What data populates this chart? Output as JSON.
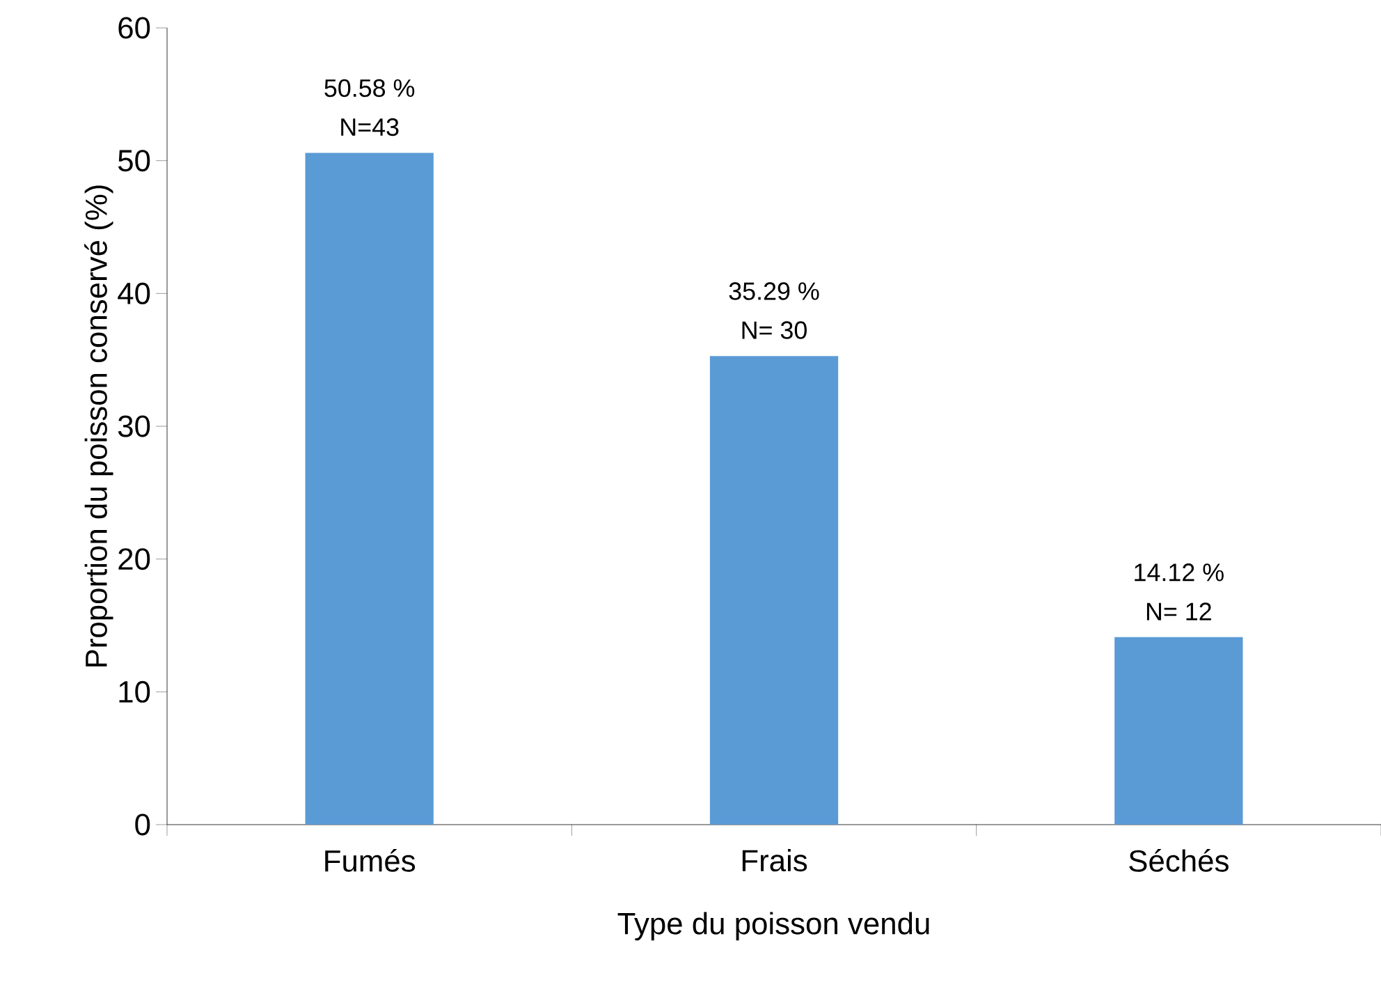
{
  "chart_data": {
    "type": "bar",
    "xlabel": "Type du poisson vendu",
    "ylabel": "Proportion du poisson conservé (%)",
    "categories": [
      "Fumés",
      "Frais",
      "Séchés"
    ],
    "values": [
      50.58,
      35.29,
      14.12
    ],
    "value_labels": [
      "50.58 %",
      "35.29 %",
      "14.12 %"
    ],
    "color": "#5b9bd5",
    "ylim": [
      0,
      60
    ],
    "yticks": [
      0,
      10,
      20,
      30,
      40,
      50,
      60
    ],
    "grid": false,
    "annotations": [
      {
        "text": "N=43",
        "x": "Fumés",
        "y": 50.58
      },
      {
        "text": "N= 30",
        "x": "Frais",
        "y": 35.29
      },
      {
        "text": "N= 12",
        "x": "Séchés",
        "y": 14.12
      }
    ]
  }
}
